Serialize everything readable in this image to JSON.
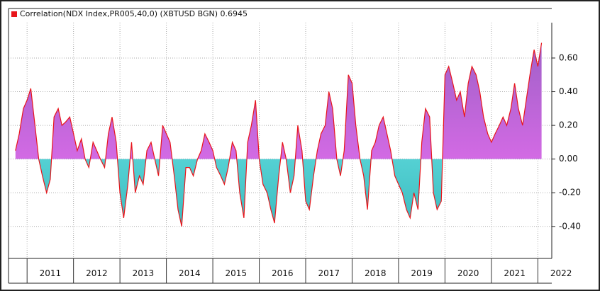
{
  "chart_data": {
    "type": "area",
    "series": [
      {
        "name": "Correlation(NDX Index,PR005,40,0) (XBTUSD BGN) 0.6945",
        "color": "#e8151b",
        "x": [
          2010.75,
          2010.83,
          2010.92,
          2011.0,
          2011.08,
          2011.17,
          2011.25,
          2011.33,
          2011.42,
          2011.5,
          2011.58,
          2011.67,
          2011.75,
          2011.83,
          2011.92,
          2012.0,
          2012.08,
          2012.17,
          2012.25,
          2012.33,
          2012.42,
          2012.5,
          2012.58,
          2012.67,
          2012.75,
          2012.83,
          2012.92,
          2013.0,
          2013.08,
          2013.17,
          2013.25,
          2013.33,
          2013.42,
          2013.5,
          2013.58,
          2013.67,
          2013.75,
          2013.83,
          2013.92,
          2014.0,
          2014.08,
          2014.17,
          2014.25,
          2014.33,
          2014.42,
          2014.5,
          2014.58,
          2014.67,
          2014.75,
          2014.83,
          2014.92,
          2015.0,
          2015.08,
          2015.17,
          2015.25,
          2015.33,
          2015.42,
          2015.5,
          2015.58,
          2015.67,
          2015.75,
          2015.83,
          2015.92,
          2016.0,
          2016.08,
          2016.17,
          2016.25,
          2016.33,
          2016.42,
          2016.5,
          2016.58,
          2016.67,
          2016.75,
          2016.83,
          2016.92,
          2017.0,
          2017.08,
          2017.17,
          2017.25,
          2017.33,
          2017.42,
          2017.5,
          2017.58,
          2017.67,
          2017.75,
          2017.83,
          2017.92,
          2018.0,
          2018.08,
          2018.17,
          2018.25,
          2018.33,
          2018.42,
          2018.5,
          2018.58,
          2018.67,
          2018.75,
          2018.83,
          2018.92,
          2019.0,
          2019.08,
          2019.17,
          2019.25,
          2019.33,
          2019.42,
          2019.5,
          2019.58,
          2019.67,
          2019.75,
          2019.83,
          2019.92,
          2020.0,
          2020.08,
          2020.17,
          2020.25,
          2020.33,
          2020.42,
          2020.5,
          2020.58,
          2020.67,
          2020.75,
          2020.83,
          2020.92,
          2021.0,
          2021.08,
          2021.17,
          2021.25,
          2021.33,
          2021.42,
          2021.5,
          2021.58,
          2021.67,
          2021.75,
          2021.83,
          2021.92,
          2022.0,
          2022.08
        ],
        "values": [
          0.05,
          0.15,
          0.3,
          0.35,
          0.42,
          0.2,
          0.0,
          -0.1,
          -0.2,
          -0.12,
          0.25,
          0.3,
          0.2,
          0.22,
          0.25,
          0.15,
          0.05,
          0.12,
          0.0,
          -0.05,
          0.1,
          0.05,
          0.0,
          -0.05,
          0.15,
          0.25,
          0.1,
          -0.2,
          -0.35,
          -0.15,
          0.1,
          -0.2,
          -0.1,
          -0.15,
          0.05,
          0.1,
          0.0,
          -0.1,
          0.2,
          0.15,
          0.1,
          -0.1,
          -0.3,
          -0.4,
          -0.05,
          -0.05,
          -0.1,
          0.0,
          0.05,
          0.15,
          0.1,
          0.05,
          -0.05,
          -0.1,
          -0.15,
          -0.05,
          0.1,
          0.05,
          -0.2,
          -0.35,
          0.1,
          0.2,
          0.35,
          0.0,
          -0.15,
          -0.2,
          -0.3,
          -0.38,
          -0.1,
          0.1,
          0.0,
          -0.2,
          -0.1,
          0.2,
          0.05,
          -0.25,
          -0.3,
          -0.1,
          0.05,
          0.15,
          0.2,
          0.4,
          0.3,
          0.0,
          -0.1,
          0.05,
          0.5,
          0.45,
          0.2,
          0.0,
          -0.1,
          -0.3,
          0.05,
          0.1,
          0.2,
          0.25,
          0.15,
          0.05,
          -0.1,
          -0.15,
          -0.2,
          -0.3,
          -0.35,
          -0.2,
          -0.3,
          0.1,
          0.3,
          0.25,
          -0.2,
          -0.3,
          -0.25,
          0.5,
          0.55,
          0.45,
          0.35,
          0.4,
          0.25,
          0.45,
          0.55,
          0.5,
          0.4,
          0.25,
          0.15,
          0.1,
          0.15,
          0.2,
          0.25,
          0.2,
          0.3,
          0.45,
          0.3,
          0.2,
          0.35,
          0.5,
          0.65,
          0.55,
          0.69
        ]
      }
    ],
    "xlim": [
      2010.6,
      2022.3
    ],
    "xticks": [
      2011,
      2012,
      2013,
      2014,
      2015,
      2016,
      2017,
      2018,
      2019,
      2020,
      2021,
      2022
    ],
    "ylim": [
      -0.59,
      0.81
    ],
    "yticks": [
      {
        "value": 0.6,
        "label": "0.60"
      },
      {
        "value": 0.4,
        "label": "0.40"
      },
      {
        "value": 0.2,
        "label": "0.20"
      },
      {
        "value": 0,
        "label": "0.00"
      },
      {
        "value": -0.2,
        "label": "-0.20"
      },
      {
        "value": -0.4,
        "label": "-0.40"
      }
    ],
    "positive_color": "#f070f4",
    "negative_color": "#7ff4f4",
    "grid": true,
    "legend": "top-left"
  }
}
